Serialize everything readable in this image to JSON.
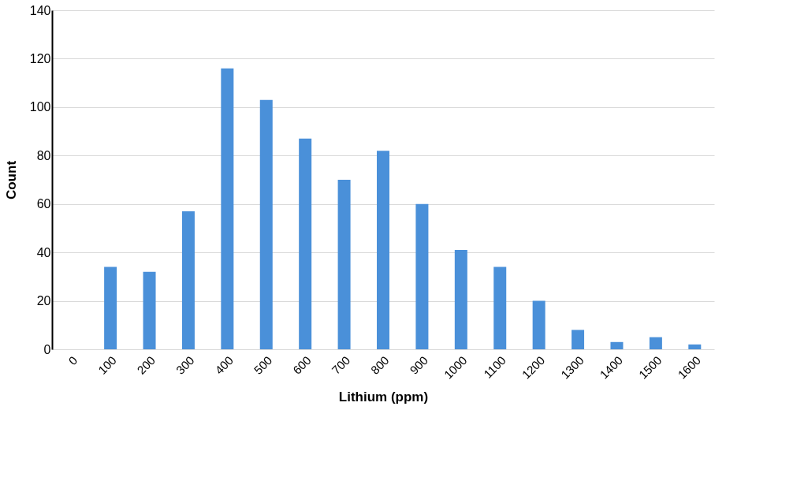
{
  "chart_data": {
    "type": "bar",
    "xlabel": "Lithium (ppm)",
    "ylabel": "Count",
    "categories": [
      "0",
      "100",
      "200",
      "300",
      "400",
      "500",
      "600",
      "700",
      "800",
      "900",
      "1000",
      "1100",
      "1200",
      "1300",
      "1400",
      "1500",
      "1600"
    ],
    "values": [
      0,
      34,
      32,
      57,
      116,
      103,
      87,
      70,
      82,
      60,
      41,
      34,
      20,
      8,
      3,
      5,
      2
    ],
    "color": "#4a90d9",
    "ylim": [
      0,
      140
    ],
    "yticks": [
      0,
      20,
      40,
      60,
      80,
      100,
      120,
      140
    ],
    "grid": "y"
  }
}
